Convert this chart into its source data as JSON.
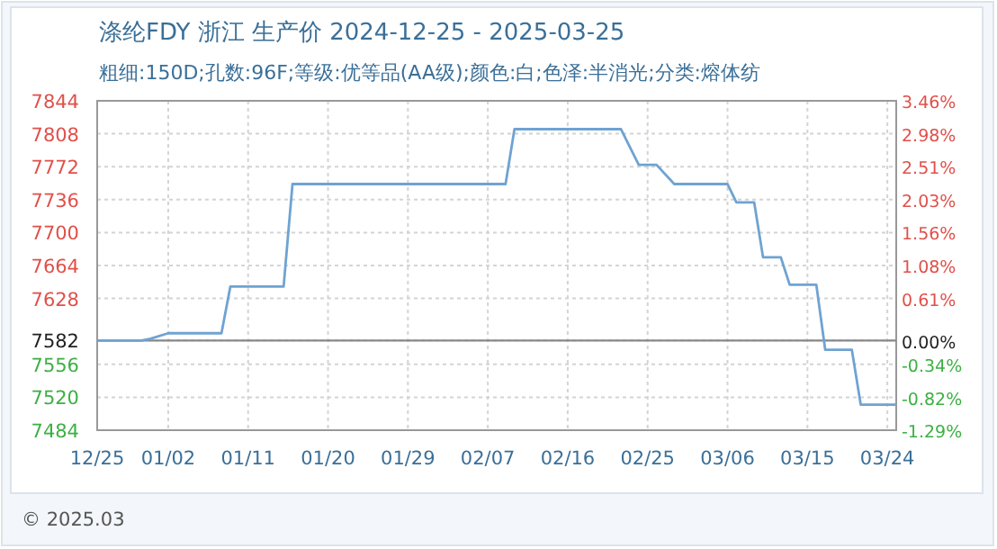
{
  "chart_data": {
    "type": "line",
    "title": "涤纶FDY 浙江 生产价 2024-12-25 - 2025-03-25",
    "subtitle": "粗细:150D;孔数:96F;等级:优等品(AA级);颜色:白;色泽:半消光;分类:熔体纺",
    "series": [
      {
        "color": "#6fa3d2",
        "x": [
          "2024-12-25",
          "2024-12-30",
          "2024-12-31",
          "2025-01-02",
          "2025-01-08",
          "2025-01-09",
          "2025-01-15",
          "2025-01-16",
          "2025-02-09",
          "2025-02-10",
          "2025-02-22",
          "2025-02-24",
          "2025-02-26",
          "2025-02-28",
          "2025-03-06",
          "2025-03-07",
          "2025-03-09",
          "2025-03-10",
          "2025-03-12",
          "2025-03-13",
          "2025-03-16",
          "2025-03-17",
          "2025-03-20",
          "2025-03-21",
          "2025-03-25"
        ],
        "values": [
          7582,
          7582,
          7584,
          7590,
          7590,
          7641,
          7641,
          7753,
          7753,
          7813,
          7813,
          7774,
          7774,
          7753,
          7753,
          7733,
          7733,
          7673,
          7673,
          7643,
          7643,
          7572,
          7572,
          7512,
          7512
        ]
      }
    ],
    "xlim": [
      "2024-12-25",
      "2025-03-25"
    ],
    "xticks": [
      {
        "value": "2024-12-25",
        "label": "12/25"
      },
      {
        "value": "2025-01-02",
        "label": "01/02"
      },
      {
        "value": "2025-01-11",
        "label": "01/11"
      },
      {
        "value": "2025-01-20",
        "label": "01/20"
      },
      {
        "value": "2025-01-29",
        "label": "01/29"
      },
      {
        "value": "2025-02-07",
        "label": "02/07"
      },
      {
        "value": "2025-02-16",
        "label": "02/16"
      },
      {
        "value": "2025-02-25",
        "label": "02/25"
      },
      {
        "value": "2025-03-06",
        "label": "03/06"
      },
      {
        "value": "2025-03-15",
        "label": "03/15"
      },
      {
        "value": "2025-03-24",
        "label": "03/24"
      }
    ],
    "ylim": [
      7484,
      7844
    ],
    "yticks": [
      7484,
      7520,
      7556,
      7582,
      7628,
      7664,
      7700,
      7736,
      7772,
      7808,
      7844
    ],
    "y2lim": [
      -1.29,
      3.46
    ],
    "y2ticks": [
      {
        "value": -1.29,
        "label": "-1.29%"
      },
      {
        "value": -0.82,
        "label": "-0.82%"
      },
      {
        "value": -0.34,
        "label": "-0.34%"
      },
      {
        "value": 0,
        "label": "0.00%"
      },
      {
        "value": 0.61,
        "label": "0.61%"
      },
      {
        "value": 1.08,
        "label": "1.08%"
      },
      {
        "value": 1.56,
        "label": "1.56%"
      },
      {
        "value": 2.03,
        "label": "2.03%"
      },
      {
        "value": 2.51,
        "label": "2.51%"
      },
      {
        "value": 2.98,
        "label": "2.98%"
      },
      {
        "value": 3.46,
        "label": "3.46%"
      }
    ],
    "ref_lines": [
      {
        "axis": "y",
        "value": 7582,
        "color": "#888888"
      }
    ],
    "grid": true,
    "annotations": [
      "© 2025.03"
    ]
  }
}
